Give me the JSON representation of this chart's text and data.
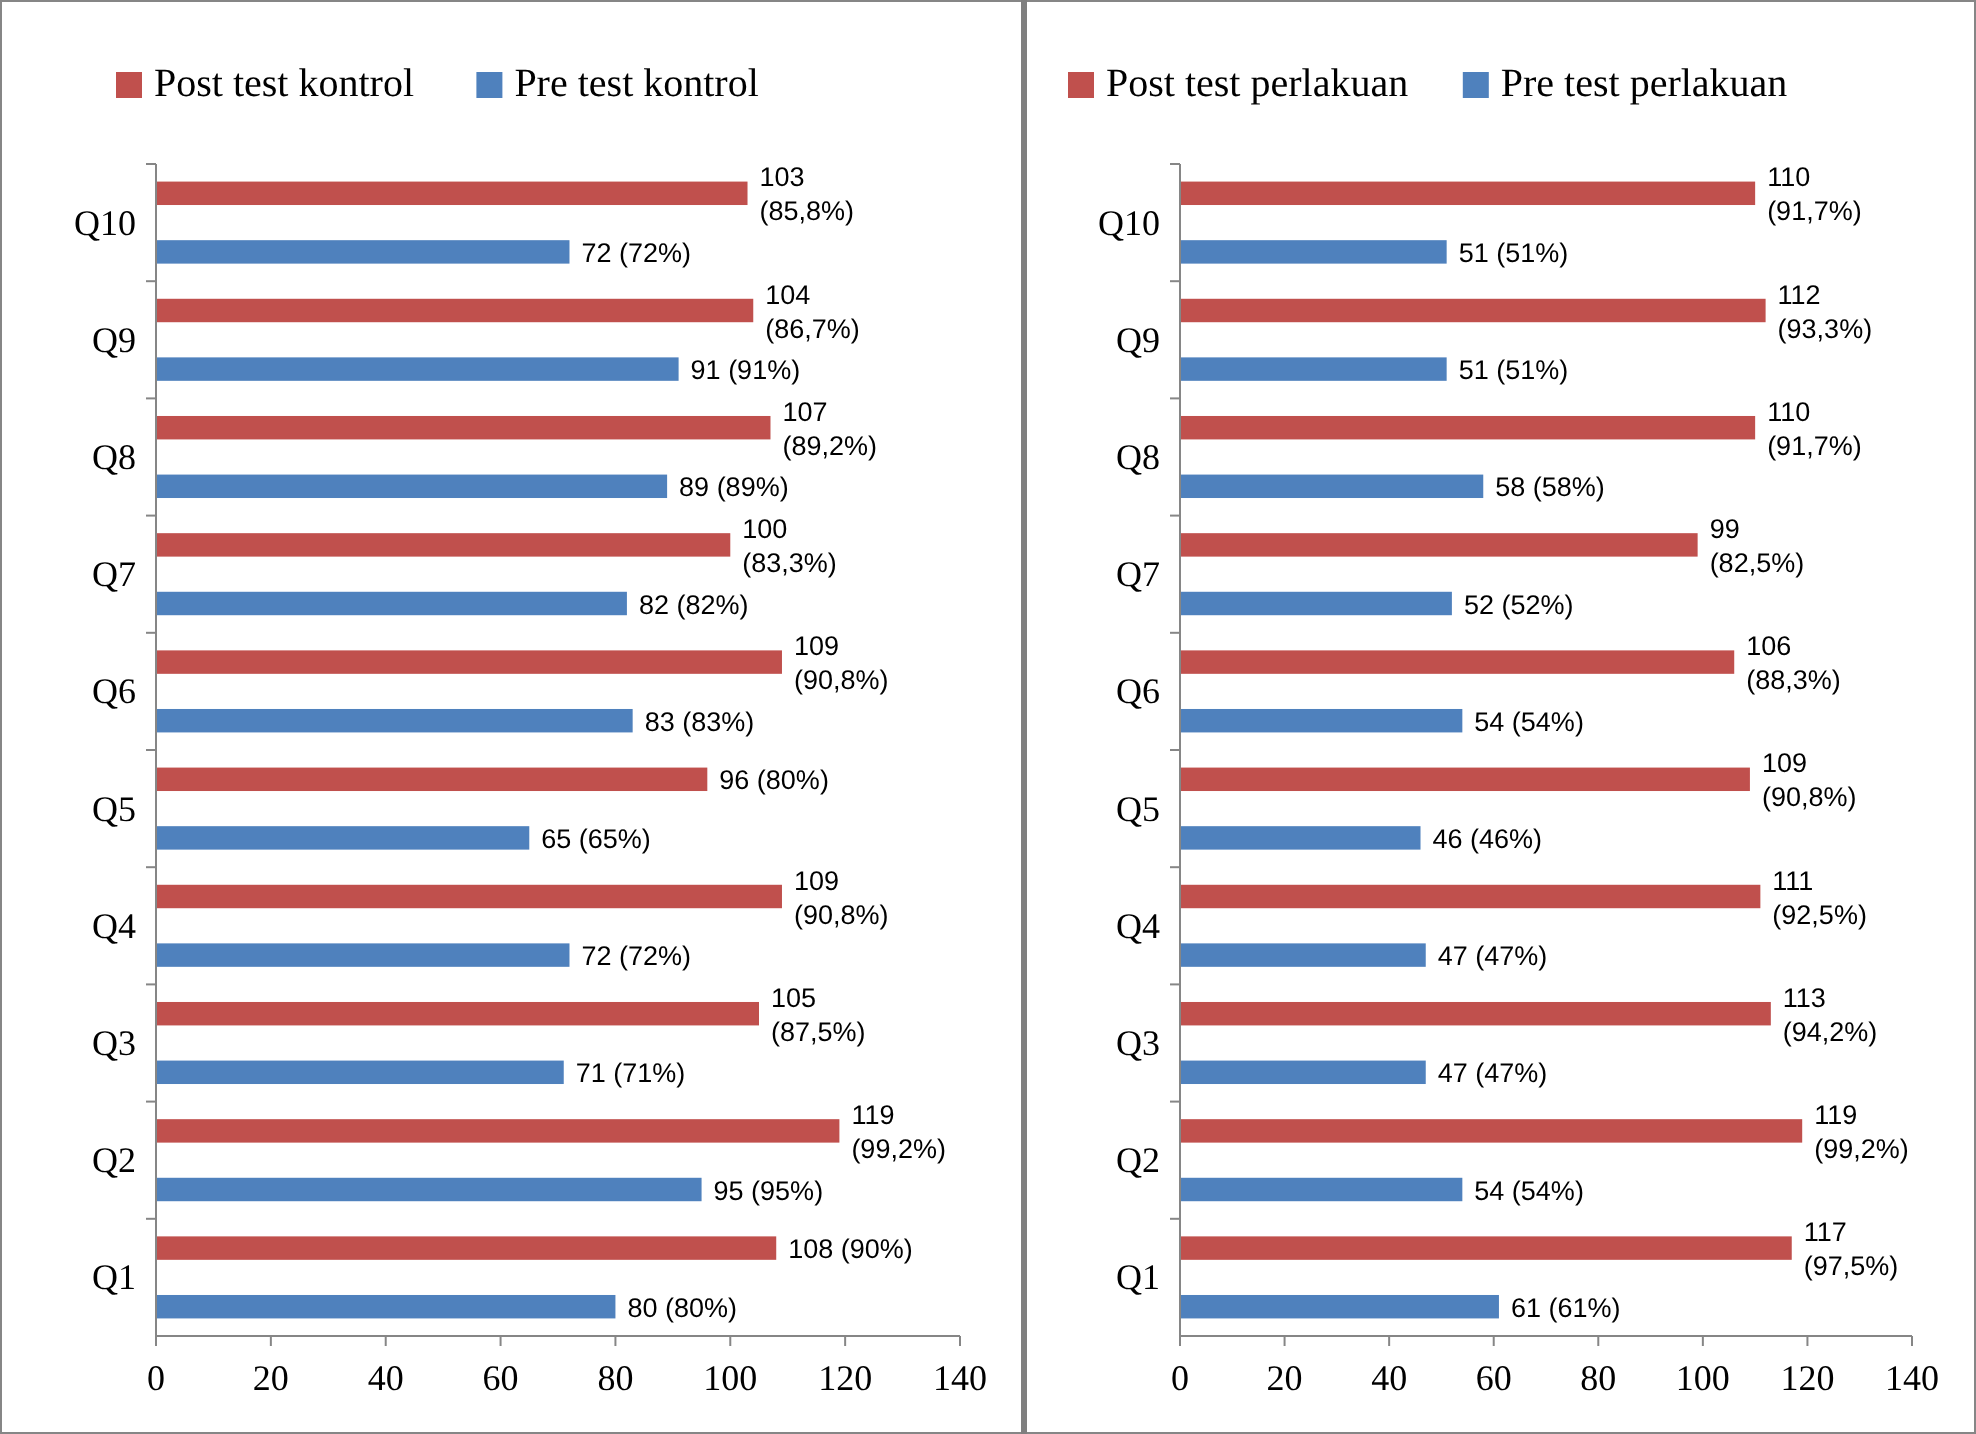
{
  "chart_data": [
    {
      "type": "bar",
      "orientation": "horizontal",
      "categories": [
        "Q10",
        "Q9",
        "Q8",
        "Q7",
        "Q6",
        "Q5",
        "Q4",
        "Q3",
        "Q2",
        "Q1"
      ],
      "xlim": [
        0,
        140
      ],
      "xticks": [
        0,
        20,
        40,
        60,
        80,
        100,
        120,
        140
      ],
      "legend": "top",
      "series": [
        {
          "name": "Post test kontrol",
          "color": "#c0504d",
          "values": [
            103,
            104,
            107,
            100,
            109,
            96,
            109,
            105,
            119,
            108
          ],
          "value_labels": [
            "103\n(85,8%)",
            "104\n(86,7%)",
            "107\n(89,2%)",
            "100\n(83,3%)",
            "109\n(90,8%)",
            "96 (80%)",
            "109\n(90,8%)",
            "105\n(87,5%)",
            "119\n(99,2%)",
            "108 (90%)"
          ]
        },
        {
          "name": "Pre test kontrol",
          "color": "#4f81bd",
          "values": [
            72,
            91,
            89,
            82,
            83,
            65,
            72,
            71,
            95,
            80
          ],
          "value_labels": [
            "72 (72%)",
            "91 (91%)",
            "89 (89%)",
            "82 (82%)",
            "83 (83%)",
            "65 (65%)",
            "72 (72%)",
            "71 (71%)",
            "95 (95%)",
            "80 (80%)"
          ]
        }
      ]
    },
    {
      "type": "bar",
      "orientation": "horizontal",
      "categories": [
        "Q10",
        "Q9",
        "Q8",
        "Q7",
        "Q6",
        "Q5",
        "Q4",
        "Q3",
        "Q2",
        "Q1"
      ],
      "xlim": [
        0,
        140
      ],
      "xticks": [
        0,
        20,
        40,
        60,
        80,
        100,
        120,
        140
      ],
      "legend": "top",
      "series": [
        {
          "name": "Post test perlakuan",
          "color": "#c0504d",
          "values": [
            110,
            112,
            110,
            99,
            106,
            109,
            111,
            113,
            119,
            117
          ],
          "value_labels": [
            "110\n(91,7%)",
            "112\n(93,3%)",
            "110\n(91,7%)",
            "99\n(82,5%)",
            "106\n(88,3%)",
            "109\n(90,8%)",
            "111\n(92,5%)",
            "113\n(94,2%)",
            "119\n(99,2%)",
            "117\n(97,5%)"
          ]
        },
        {
          "name": "Pre test perlakuan",
          "color": "#4f81bd",
          "values": [
            51,
            51,
            58,
            52,
            54,
            46,
            47,
            47,
            54,
            61
          ],
          "value_labels": [
            "51 (51%)",
            "51 (51%)",
            "58 (58%)",
            "52 (52%)",
            "54 (54%)",
            "46 (46%)",
            "47 (47%)",
            "47 (47%)",
            "54 (54%)",
            "61 (61%)"
          ]
        }
      ]
    }
  ]
}
